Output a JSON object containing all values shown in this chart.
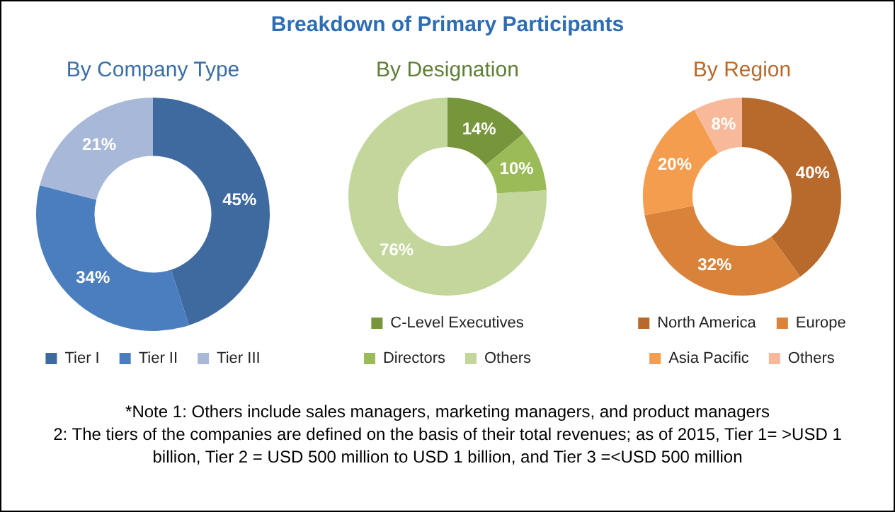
{
  "chart_data": [
    {
      "type": "donut",
      "subtitle": "By Company Type",
      "categories": [
        "Tier I",
        "Tier II",
        "Tier III"
      ],
      "values": [
        45,
        34,
        21
      ],
      "value_labels": [
        "45%",
        "34%",
        "21%"
      ],
      "colors": [
        "#3f6a9f",
        "#4a7ebf",
        "#a8b8d8"
      ],
      "legend": "bottom"
    },
    {
      "type": "donut",
      "title": "Breakdown of Primary Participants",
      "subtitle": "By Designation",
      "categories": [
        "C-Level Executives",
        "Directors",
        "Others"
      ],
      "values": [
        14,
        10,
        76
      ],
      "value_labels": [
        "14%",
        "10%",
        "76%"
      ],
      "colors": [
        "#77963b",
        "#9bbb59",
        "#c3d69b"
      ],
      "legend": "bottom",
      "annotations": [
        "*Note 1: Others include sales managers, marketing managers, and product managers",
        "2: The tiers of the companies are defined on the basis of their total revenues; as of 2015, Tier 1= >USD 1 billion, Tier 2 = USD 500 million to USD 1 billion, and Tier 3 =<USD 500 million"
      ]
    },
    {
      "type": "donut",
      "subtitle": "By Region",
      "categories": [
        "North America",
        "Europe",
        "Asia Pacific",
        "Others"
      ],
      "values": [
        40,
        32,
        20,
        8
      ],
      "value_labels": [
        "40%",
        "32%",
        "20%",
        "8%"
      ],
      "colors": [
        "#b8692c",
        "#d9833a",
        "#f59d4f",
        "#f8b99a"
      ],
      "legend": "bottom"
    }
  ]
}
